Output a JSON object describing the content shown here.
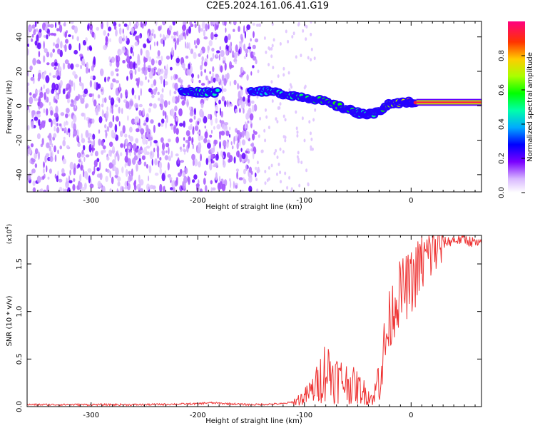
{
  "title": "C2E5.2024.161.06.41.G19",
  "colors": {
    "snr_line": "#ee3333",
    "axis": "#000000",
    "background": "#ffffff"
  },
  "chart_data": [
    {
      "type": "heatmap",
      "name": "spectrogram",
      "xlabel": "Height of straight line (km)",
      "ylabel": "Frequency (Hz)",
      "xlim": [
        -360,
        66
      ],
      "ylim": [
        -50,
        49
      ],
      "xticks": [
        -300,
        -200,
        -100,
        0
      ],
      "xtick_labels": [
        "-300",
        "-200",
        "-100",
        "0"
      ],
      "yticks": [
        -40,
        -20,
        0,
        20,
        40
      ],
      "ytick_labels": [
        "-40",
        "-20",
        "0",
        "20",
        "40"
      ],
      "colorbar": {
        "label": "Normalized spectral amplitude",
        "range": [
          0,
          1
        ],
        "ticks": [
          0.0,
          0.2,
          0.4,
          0.6,
          0.8
        ],
        "tick_labels": [
          "0.0",
          "0.2",
          "0.4",
          "0.6",
          "0.8"
        ]
      },
      "signal_track": [
        {
          "x": -215,
          "y": 8,
          "amp": 0.45
        },
        {
          "x": -200,
          "y": 8,
          "amp": 0.5
        },
        {
          "x": -180,
          "y": 8,
          "amp": 0.45
        },
        {
          "x": -150,
          "y": 9,
          "amp": 0.35
        },
        {
          "x": -130,
          "y": 8,
          "amp": 0.45
        },
        {
          "x": -110,
          "y": 6,
          "amp": 0.5
        },
        {
          "x": -90,
          "y": 4,
          "amp": 0.55
        },
        {
          "x": -70,
          "y": 0,
          "amp": 0.6
        },
        {
          "x": -55,
          "y": -3,
          "amp": 0.55
        },
        {
          "x": -45,
          "y": -5,
          "amp": 0.45
        },
        {
          "x": -35,
          "y": -5,
          "amp": 0.5
        },
        {
          "x": -20,
          "y": 1,
          "amp": 0.65
        },
        {
          "x": -5,
          "y": 2,
          "amp": 0.75
        },
        {
          "x": 5,
          "y": 2,
          "amp": 0.95
        },
        {
          "x": 66,
          "y": 2,
          "amp": 1.0
        }
      ]
    },
    {
      "type": "line",
      "name": "snr",
      "xlabel": "Height of straight line (km)",
      "ylabel": "SNR (10 * v/v)",
      "multiplier_label": "(x10",
      "multiplier_exp": "4",
      "xlim": [
        -360,
        66
      ],
      "ylim": [
        0,
        1.8
      ],
      "xticks": [
        -300,
        -200,
        -100,
        0
      ],
      "xtick_labels": [
        "-300",
        "-200",
        "-100",
        "0"
      ],
      "yticks": [
        0.0,
        0.5,
        1.0,
        1.5
      ],
      "ytick_labels": [
        "0.0",
        "0.5",
        "1.0",
        "1.5"
      ],
      "series": [
        {
          "name": "SNR",
          "x": [
            -360,
            -300,
            -250,
            -200,
            -190,
            -150,
            -120,
            -110,
            -100,
            -90,
            -80,
            -70,
            -60,
            -50,
            -40,
            -35,
            -30,
            -25,
            -20,
            -15,
            -10,
            -5,
            0,
            10,
            20,
            30,
            40,
            50,
            60,
            66
          ],
          "values": [
            0.02,
            0.02,
            0.02,
            0.03,
            0.04,
            0.02,
            0.03,
            0.05,
            0.1,
            0.2,
            0.4,
            0.3,
            0.25,
            0.2,
            0.12,
            0.08,
            0.35,
            0.6,
            0.9,
            1.1,
            1.2,
            1.25,
            1.3,
            1.5,
            1.65,
            1.72,
            1.75,
            1.76,
            1.72,
            1.7
          ]
        }
      ]
    }
  ]
}
